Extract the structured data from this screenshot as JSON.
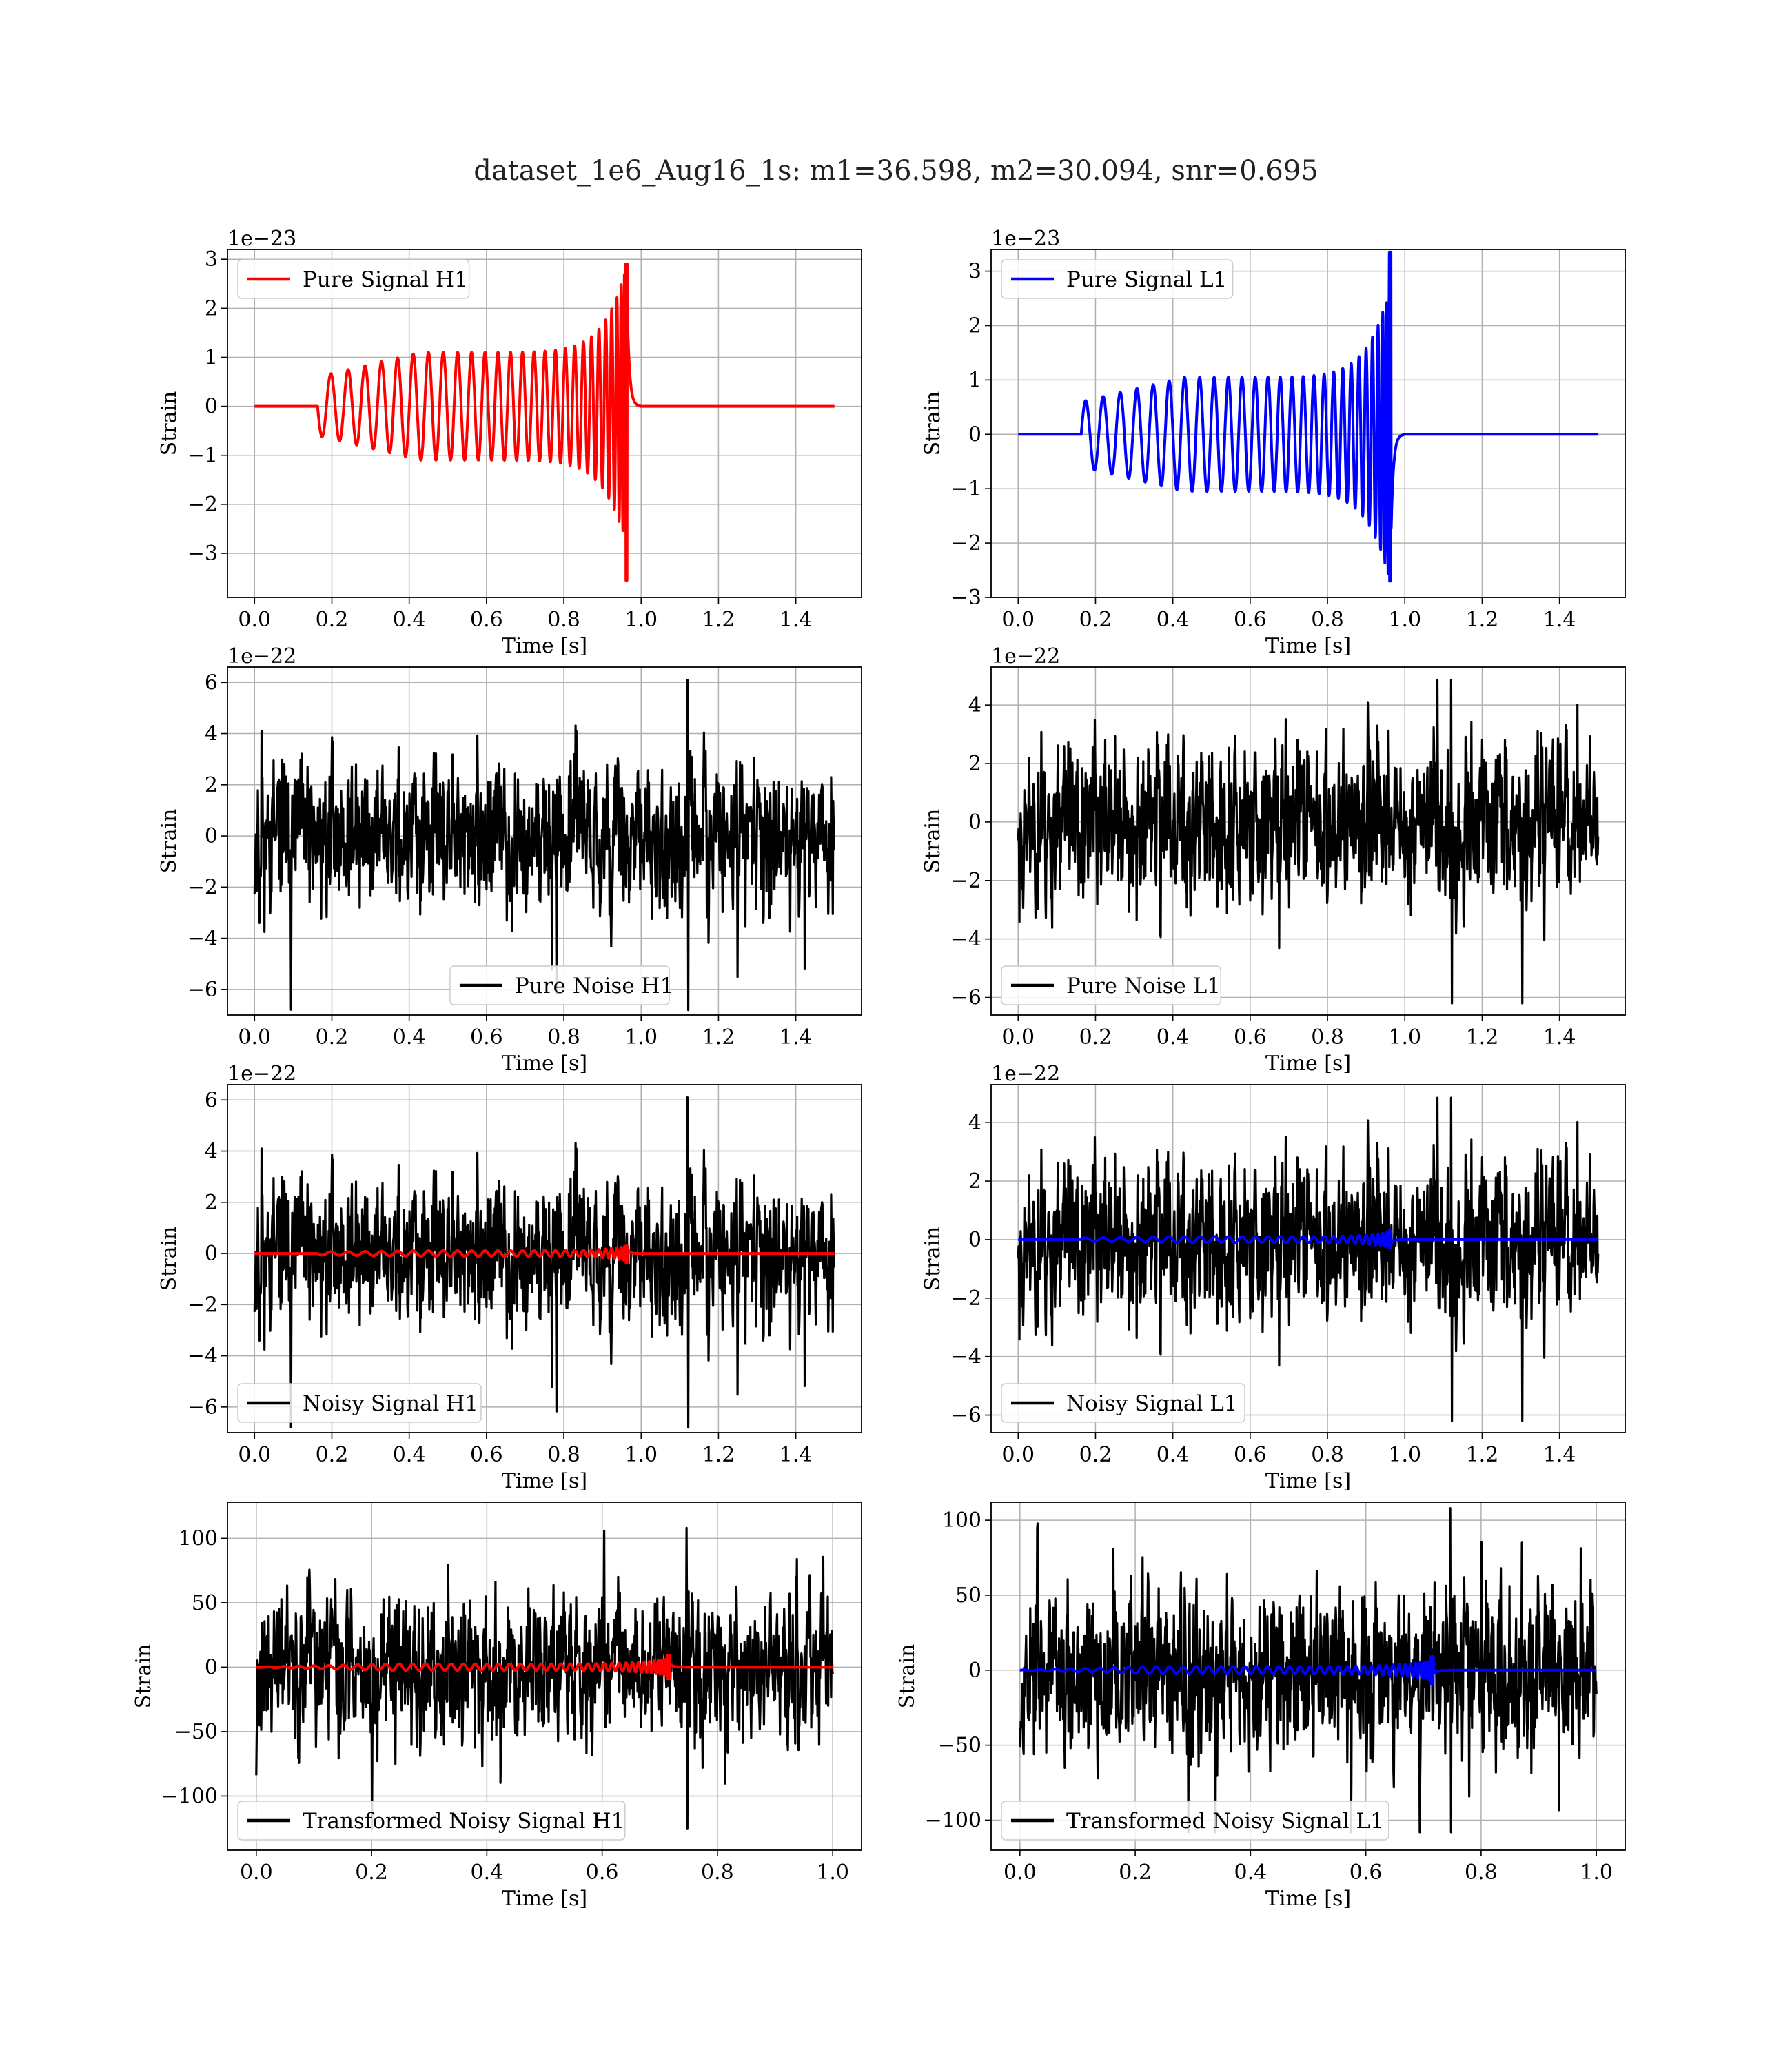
{
  "title": "dataset_1e6_Aug16_1s: m1=36.598, m2=30.094, snr=0.695",
  "colors": {
    "h1": "#ff0000",
    "l1": "#0000ff",
    "noise": "#000000",
    "grid": "#b0b0b0"
  },
  "chart_data": [
    {
      "id": "pure-signal-h1",
      "type": "line",
      "legend": "Pure Signal H1",
      "legend_loc": "upper-left",
      "xlabel": "Time [s]",
      "ylabel": "Strain",
      "offset": "1e−23",
      "xlim": [
        -0.07,
        1.57
      ],
      "ylim": [
        -3.9,
        3.2
      ],
      "xticks": [
        0.0,
        0.2,
        0.4,
        0.6,
        0.8,
        1.0,
        1.2,
        1.4
      ],
      "xticklabels": [
        "0.0",
        "0.2",
        "0.4",
        "0.6",
        "0.8",
        "1.0",
        "1.2",
        "1.4"
      ],
      "yticks": [
        -3,
        -2,
        -1,
        0,
        1,
        2,
        3
      ],
      "yticklabels": [
        "−3",
        "−2",
        "−1",
        "0",
        "1",
        "2",
        "3"
      ],
      "series": [
        {
          "name": "Pure Signal H1",
          "color": "#ff0000",
          "kind": "chirp",
          "start": 0.163,
          "merger": 0.962,
          "pre": 0.6,
          "amp": 1.1,
          "peak": 2.9,
          "trough": -3.55,
          "tfinal": 1.5,
          "phase": -1
        }
      ]
    },
    {
      "id": "pure-signal-l1",
      "type": "line",
      "legend": "Pure Signal L1",
      "legend_loc": "upper-left",
      "xlabel": "Time [s]",
      "ylabel": "Strain",
      "offset": "1e−23",
      "xlim": [
        -0.07,
        1.57
      ],
      "ylim": [
        -3.0,
        3.4
      ],
      "xticks": [
        0.0,
        0.2,
        0.4,
        0.6,
        0.8,
        1.0,
        1.2,
        1.4
      ],
      "xticklabels": [
        "0.0",
        "0.2",
        "0.4",
        "0.6",
        "0.8",
        "1.0",
        "1.2",
        "1.4"
      ],
      "yticks": [
        -3,
        -2,
        -1,
        0,
        1,
        2,
        3
      ],
      "yticklabels": [
        "−3",
        "−2",
        "−1",
        "0",
        "1",
        "2",
        "3"
      ],
      "series": [
        {
          "name": "Pure Signal L1",
          "color": "#0000ff",
          "kind": "chirp",
          "start": 0.163,
          "merger": 0.962,
          "pre": 0.6,
          "amp": 1.05,
          "peak": 3.35,
          "trough": -2.7,
          "tfinal": 1.5,
          "phase": 1
        }
      ]
    },
    {
      "id": "pure-noise-h1",
      "type": "line",
      "legend": "Pure Noise H1",
      "legend_loc": "lower-center",
      "xlabel": "Time [s]",
      "ylabel": "Strain",
      "offset": "1e−22",
      "xlim": [
        -0.07,
        1.57
      ],
      "ylim": [
        -7.0,
        6.6
      ],
      "xticks": [
        0.0,
        0.2,
        0.4,
        0.6,
        0.8,
        1.0,
        1.2,
        1.4
      ],
      "xticklabels": [
        "0.0",
        "0.2",
        "0.4",
        "0.6",
        "0.8",
        "1.0",
        "1.2",
        "1.4"
      ],
      "yticks": [
        -6,
        -4,
        -2,
        0,
        2,
        4,
        6
      ],
      "yticklabels": [
        "−6",
        "−4",
        "−2",
        "0",
        "2",
        "4",
        "6"
      ],
      "series": [
        {
          "name": "Pure Noise H1",
          "color": "#000000",
          "kind": "noise",
          "seed": 11,
          "scale": 1.25,
          "max": 6.1,
          "min": -6.8,
          "tfinal": 1.5
        }
      ]
    },
    {
      "id": "pure-noise-l1",
      "type": "line",
      "legend": "Pure Noise L1",
      "legend_loc": "lower-left",
      "xlabel": "Time [s]",
      "ylabel": "Strain",
      "offset": "1e−22",
      "xlim": [
        -0.07,
        1.57
      ],
      "ylim": [
        -6.6,
        5.3
      ],
      "xticks": [
        0.0,
        0.2,
        0.4,
        0.6,
        0.8,
        1.0,
        1.2,
        1.4
      ],
      "xticklabels": [
        "0.0",
        "0.2",
        "0.4",
        "0.6",
        "0.8",
        "1.0",
        "1.2",
        "1.4"
      ],
      "yticks": [
        -6,
        -4,
        -2,
        0,
        2,
        4
      ],
      "yticklabels": [
        "−6",
        "−4",
        "−2",
        "0",
        "2",
        "4"
      ],
      "series": [
        {
          "name": "Pure Noise L1",
          "color": "#000000",
          "kind": "noise",
          "seed": 23,
          "scale": 1.2,
          "max": 4.85,
          "min": -6.2,
          "tfinal": 1.5
        }
      ]
    },
    {
      "id": "noisy-signal-h1",
      "type": "line",
      "legend": "Noisy Signal H1",
      "legend_loc": "lower-left",
      "xlabel": "Time [s]",
      "ylabel": "Strain",
      "offset": "1e−22",
      "xlim": [
        -0.07,
        1.57
      ],
      "ylim": [
        -7.0,
        6.6
      ],
      "xticks": [
        0.0,
        0.2,
        0.4,
        0.6,
        0.8,
        1.0,
        1.2,
        1.4
      ],
      "xticklabels": [
        "0.0",
        "0.2",
        "0.4",
        "0.6",
        "0.8",
        "1.0",
        "1.2",
        "1.4"
      ],
      "yticks": [
        -6,
        -4,
        -2,
        0,
        2,
        4,
        6
      ],
      "yticklabels": [
        "−6",
        "−4",
        "−2",
        "0",
        "2",
        "4",
        "6"
      ],
      "series": [
        {
          "name": "Noisy Signal H1",
          "color": "#000000",
          "kind": "noise",
          "seed": 11,
          "scale": 1.25,
          "max": 6.1,
          "min": -6.8,
          "tfinal": 1.5
        },
        {
          "color": "#ff0000",
          "kind": "chirp",
          "start": 0.163,
          "merger": 0.962,
          "pre": 0.06,
          "amp": 0.11,
          "peak": 0.29,
          "trough": -0.36,
          "tfinal": 1.5,
          "phase": -1
        }
      ]
    },
    {
      "id": "noisy-signal-l1",
      "type": "line",
      "legend": "Noisy Signal L1",
      "legend_loc": "lower-left",
      "xlabel": "Time [s]",
      "ylabel": "Strain",
      "offset": "1e−22",
      "xlim": [
        -0.07,
        1.57
      ],
      "ylim": [
        -6.6,
        5.3
      ],
      "xticks": [
        0.0,
        0.2,
        0.4,
        0.6,
        0.8,
        1.0,
        1.2,
        1.4
      ],
      "xticklabels": [
        "0.0",
        "0.2",
        "0.4",
        "0.6",
        "0.8",
        "1.0",
        "1.2",
        "1.4"
      ],
      "yticks": [
        -6,
        -4,
        -2,
        0,
        2,
        4
      ],
      "yticklabels": [
        "−6",
        "−4",
        "−2",
        "0",
        "2",
        "4"
      ],
      "series": [
        {
          "name": "Noisy Signal L1",
          "color": "#000000",
          "kind": "noise",
          "seed": 23,
          "scale": 1.2,
          "max": 4.85,
          "min": -6.2,
          "tfinal": 1.5
        },
        {
          "color": "#0000ff",
          "kind": "chirp",
          "start": 0.163,
          "merger": 0.962,
          "pre": 0.06,
          "amp": 0.105,
          "peak": 0.335,
          "trough": -0.27,
          "tfinal": 1.5,
          "phase": 1
        }
      ]
    },
    {
      "id": "transformed-noisy-signal-h1",
      "type": "line",
      "legend": "Transformed Noisy Signal H1",
      "legend_loc": "lower-left",
      "xlabel": "Time [s]",
      "ylabel": "Strain",
      "offset": "",
      "xlim": [
        -0.05,
        1.05
      ],
      "ylim": [
        -142,
        128
      ],
      "xticks": [
        0.0,
        0.2,
        0.4,
        0.6,
        0.8,
        1.0
      ],
      "xticklabels": [
        "0.0",
        "0.2",
        "0.4",
        "0.6",
        "0.8",
        "1.0"
      ],
      "yticks": [
        -100,
        -50,
        0,
        50,
        100
      ],
      "yticklabels": [
        "−100",
        "−50",
        "0",
        "50",
        "100"
      ],
      "series": [
        {
          "name": "Transformed Noisy Signal H1",
          "color": "#000000",
          "kind": "noise",
          "seed": 37,
          "scale": 25,
          "max": 108,
          "min": -125,
          "tfinal": 1.0
        },
        {
          "color": "#ff0000",
          "kind": "chirp",
          "start": 0.0,
          "merger": 0.715,
          "pre": 0.12,
          "amp": 2.5,
          "peak": 9,
          "trough": -9,
          "tfinal": 1.0,
          "phase": -1,
          "cycles": 42
        }
      ]
    },
    {
      "id": "transformed-noisy-signal-l1",
      "type": "line",
      "legend": "Transformed Noisy Signal L1",
      "legend_loc": "lower-left",
      "xlabel": "Time [s]",
      "ylabel": "Strain",
      "offset": "",
      "xlim": [
        -0.05,
        1.05
      ],
      "ylim": [
        -120,
        112
      ],
      "xticks": [
        0.0,
        0.2,
        0.4,
        0.6,
        0.8,
        1.0
      ],
      "xticklabels": [
        "0.0",
        "0.2",
        "0.4",
        "0.6",
        "0.8",
        "1.0"
      ],
      "yticks": [
        -100,
        -50,
        0,
        50,
        100
      ],
      "yticklabels": [
        "−100",
        "−50",
        "0",
        "50",
        "100"
      ],
      "series": [
        {
          "name": "Transformed Noisy Signal L1",
          "color": "#000000",
          "kind": "noise",
          "seed": 53,
          "scale": 24,
          "max": 108,
          "min": -108,
          "tfinal": 1.0
        },
        {
          "color": "#0000ff",
          "kind": "chirp",
          "start": 0.0,
          "merger": 0.715,
          "pre": 0.12,
          "amp": 2.5,
          "peak": 9,
          "trough": -9,
          "tfinal": 1.0,
          "phase": 1,
          "cycles": 42
        }
      ]
    }
  ]
}
